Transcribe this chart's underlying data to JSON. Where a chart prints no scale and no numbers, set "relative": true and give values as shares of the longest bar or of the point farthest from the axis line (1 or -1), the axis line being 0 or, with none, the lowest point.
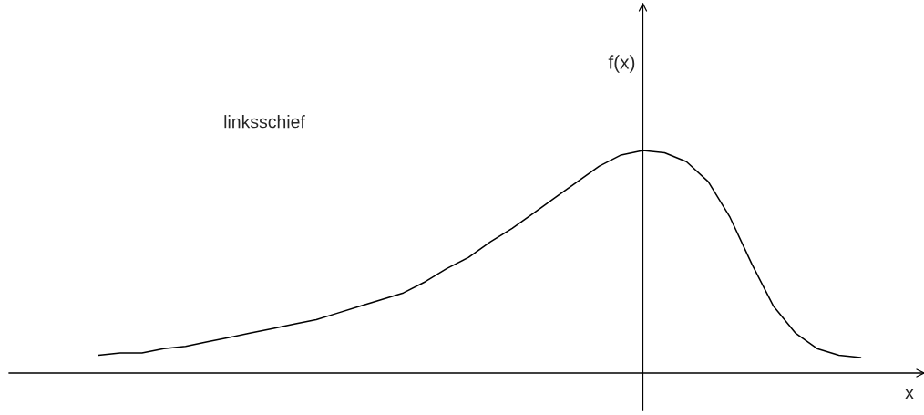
{
  "chart_data": {
    "type": "line",
    "relative": true,
    "xlabel": "x",
    "ylabel": "f(x)",
    "annotations": [
      "linksschief"
    ],
    "categories": [
      null,
      null,
      null,
      null,
      null,
      null,
      null,
      null,
      null,
      null,
      null,
      null,
      null,
      null,
      null,
      null,
      null,
      null,
      null,
      null,
      null,
      null,
      null,
      null,
      null,
      null,
      null,
      null,
      null,
      null,
      null,
      null,
      null,
      null,
      null,
      null
    ],
    "series": [
      {
        "color": "#000000",
        "values": [
          0.08,
          0.09,
          0.09,
          0.11,
          0.12,
          0.14,
          0.16,
          0.18,
          0.2,
          0.22,
          0.24,
          0.27,
          0.3,
          0.33,
          0.36,
          0.41,
          0.47,
          0.52,
          0.59,
          0.65,
          0.72,
          0.79,
          0.86,
          0.93,
          0.98,
          1,
          0.99,
          0.95,
          0.86,
          0.7,
          0.49,
          0.3,
          0.18,
          0.11,
          0.08,
          0.07
        ]
      }
    ],
    "legend": false,
    "line_style": "solid",
    "marker": "none"
  }
}
